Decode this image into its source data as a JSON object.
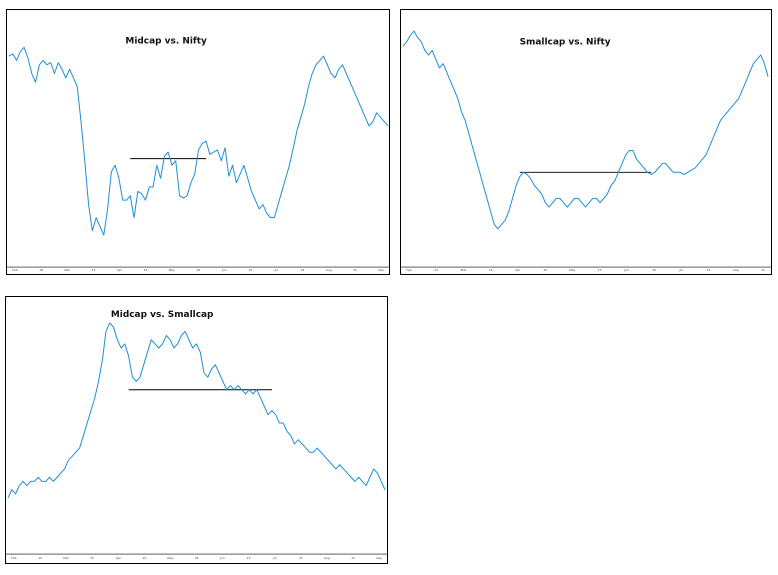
{
  "chart_data": [
    {
      "type": "line",
      "title": "Midcap vs. Nifty",
      "ylim": [
        0,
        100
      ],
      "grid": false,
      "x_tick_labels": [
        "Feb",
        "18",
        "Mar",
        "15",
        "Apr",
        "15",
        "May",
        "18",
        "Jun",
        "15",
        "Jul",
        "15",
        "Aug",
        "15",
        "Sep"
      ],
      "reference_line": {
        "x_start": 32,
        "x_end": 52,
        "y": 41
      },
      "series": [
        {
          "x": [
            0,
            1,
            2,
            3,
            4,
            5,
            6,
            7,
            8,
            9,
            10,
            11,
            12,
            13,
            14,
            15,
            16,
            17,
            18,
            19,
            20,
            21,
            22,
            23,
            24,
            25,
            26,
            27,
            28,
            29,
            30,
            31,
            32,
            33,
            34,
            35,
            36,
            37,
            38,
            39,
            40,
            41,
            42,
            43,
            44,
            45,
            46,
            47,
            48,
            49,
            50,
            51,
            52,
            53,
            54,
            55,
            56,
            57,
            58,
            59,
            60,
            61,
            62,
            63,
            64,
            65,
            66,
            67,
            68,
            69,
            70,
            71,
            72,
            73,
            74,
            75,
            76,
            77,
            78,
            79,
            80,
            81,
            82,
            83,
            84,
            85,
            86,
            87,
            88,
            89,
            90,
            91,
            92,
            93,
            94,
            95,
            96,
            97,
            98,
            99,
            100
          ],
          "values": [
            88,
            89,
            86,
            90,
            92,
            87,
            80,
            76,
            84,
            86,
            84,
            85,
            80,
            85,
            82,
            78,
            82,
            78,
            74,
            58,
            40,
            20,
            8,
            14,
            10,
            6,
            18,
            35,
            38,
            32,
            22,
            22,
            24,
            14,
            26,
            25,
            22,
            28,
            28,
            38,
            32,
            42,
            44,
            38,
            40,
            24,
            23,
            24,
            30,
            34,
            45,
            48,
            49,
            43,
            44,
            45,
            40,
            46,
            33,
            38,
            30,
            34,
            38,
            32,
            26,
            22,
            18,
            20,
            16,
            14,
            14,
            20,
            26,
            32,
            38,
            46,
            54,
            60,
            66,
            74,
            80,
            84,
            86,
            88,
            84,
            80,
            78,
            82,
            84,
            80,
            76,
            72,
            68,
            64,
            60,
            56,
            58,
            62,
            60,
            58,
            56
          ]
        }
      ]
    },
    {
      "type": "line",
      "title": "Smallcap vs. Nifty",
      "ylim": [
        0,
        100
      ],
      "grid": false,
      "x_tick_labels": [
        "Feb",
        "15",
        "Mar",
        "15",
        "Apr",
        "15",
        "May",
        "15",
        "Jun",
        "15",
        "Jul",
        "15",
        "Aug",
        "15"
      ],
      "reference_line": {
        "x_start": 32,
        "x_end": 68,
        "y": 34
      },
      "series": [
        {
          "x": [
            0,
            1,
            2,
            3,
            4,
            5,
            6,
            7,
            8,
            9,
            10,
            11,
            12,
            13,
            14,
            15,
            16,
            17,
            18,
            19,
            20,
            21,
            22,
            23,
            24,
            25,
            26,
            27,
            28,
            29,
            30,
            31,
            32,
            33,
            34,
            35,
            36,
            37,
            38,
            39,
            40,
            41,
            42,
            43,
            44,
            45,
            46,
            47,
            48,
            49,
            50,
            51,
            52,
            53,
            54,
            55,
            56,
            57,
            58,
            59,
            60,
            61,
            62,
            63,
            64,
            65,
            66,
            67,
            68,
            69,
            70,
            71,
            72,
            73,
            74,
            75,
            76,
            77,
            78,
            79,
            80,
            81,
            82,
            83,
            84,
            85,
            86,
            87,
            88,
            89,
            90,
            91,
            92,
            93,
            94,
            95,
            96,
            97,
            98,
            99,
            100
          ],
          "values": [
            92,
            94,
            97,
            99,
            96,
            94,
            90,
            88,
            90,
            86,
            82,
            84,
            80,
            76,
            72,
            68,
            62,
            58,
            52,
            46,
            40,
            34,
            28,
            22,
            16,
            10,
            8,
            10,
            12,
            16,
            22,
            28,
            32,
            34,
            33,
            31,
            28,
            26,
            24,
            20,
            18,
            20,
            22,
            22,
            20,
            18,
            20,
            22,
            22,
            20,
            18,
            20,
            22,
            22,
            20,
            22,
            24,
            28,
            30,
            34,
            38,
            42,
            44,
            44,
            40,
            38,
            36,
            34,
            33,
            34,
            36,
            38,
            38,
            36,
            34,
            34,
            34,
            33,
            34,
            35,
            36,
            38,
            40,
            42,
            46,
            50,
            54,
            58,
            60,
            62,
            64,
            66,
            68,
            72,
            76,
            80,
            84,
            86,
            88,
            84,
            78
          ]
        }
      ]
    },
    {
      "type": "line",
      "title": "Midcap vs. Smallcap",
      "ylim": [
        0,
        100
      ],
      "grid": false,
      "x_tick_labels": [
        "Feb",
        "15",
        "Mar",
        "15",
        "Apr",
        "15",
        "May",
        "18",
        "Jun",
        "15",
        "Jul",
        "15",
        "Aug",
        "15",
        "Sep"
      ],
      "reference_line": {
        "x_start": 32,
        "x_end": 70,
        "y": 66
      },
      "series": [
        {
          "x": [
            0,
            1,
            2,
            3,
            4,
            5,
            6,
            7,
            8,
            9,
            10,
            11,
            12,
            13,
            14,
            15,
            16,
            17,
            18,
            19,
            20,
            21,
            22,
            23,
            24,
            25,
            26,
            27,
            28,
            29,
            30,
            31,
            32,
            33,
            34,
            35,
            36,
            37,
            38,
            39,
            40,
            41,
            42,
            43,
            44,
            45,
            46,
            47,
            48,
            49,
            50,
            51,
            52,
            53,
            54,
            55,
            56,
            57,
            58,
            59,
            60,
            61,
            62,
            63,
            64,
            65,
            66,
            67,
            68,
            69,
            70,
            71,
            72,
            73,
            74,
            75,
            76,
            77,
            78,
            79,
            80,
            81,
            82,
            83,
            84,
            85,
            86,
            87,
            88,
            89,
            90,
            91,
            92,
            93,
            94,
            95,
            96,
            97,
            98,
            99,
            100
          ],
          "values": [
            14,
            18,
            16,
            20,
            22,
            20,
            22,
            22,
            24,
            22,
            22,
            24,
            22,
            24,
            26,
            28,
            32,
            34,
            36,
            38,
            44,
            50,
            56,
            62,
            70,
            80,
            94,
            98,
            96,
            90,
            86,
            88,
            82,
            72,
            70,
            72,
            78,
            84,
            90,
            88,
            86,
            88,
            92,
            90,
            86,
            88,
            92,
            94,
            90,
            86,
            88,
            84,
            74,
            72,
            76,
            78,
            74,
            70,
            66,
            68,
            66,
            68,
            66,
            64,
            66,
            64,
            66,
            62,
            58,
            54,
            56,
            54,
            50,
            50,
            46,
            44,
            40,
            42,
            40,
            38,
            36,
            36,
            38,
            36,
            34,
            32,
            30,
            28,
            30,
            28,
            26,
            24,
            22,
            24,
            22,
            20,
            24,
            28,
            26,
            22,
            18
          ]
        }
      ]
    }
  ]
}
